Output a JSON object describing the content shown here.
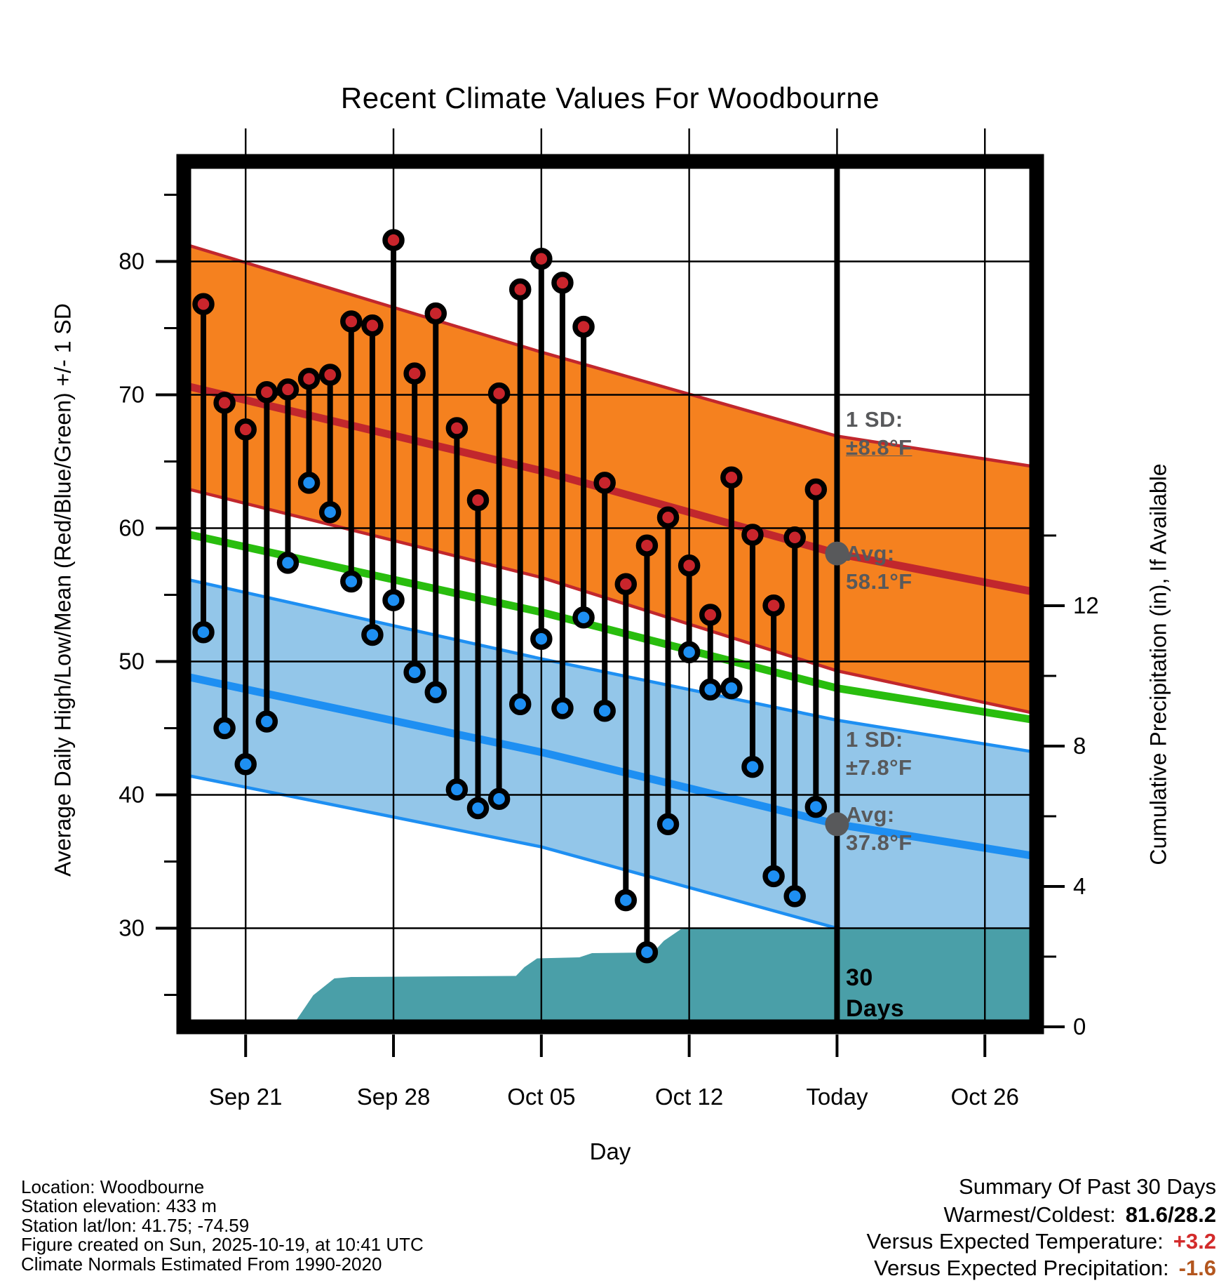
{
  "title": "Recent Climate Values For Woodbourne",
  "axes": {
    "x_label": "Day",
    "y_left_label": "Average Daily High/Low/Mean (Red/Blue/Green) +/- 1 SD",
    "y_right_label": "Cumulative Precipitation (in), If Available",
    "x_ticks": [
      {
        "d": 2,
        "label": "Sep 21"
      },
      {
        "d": 9,
        "label": "Sep 28"
      },
      {
        "d": 16,
        "label": "Oct 05"
      },
      {
        "d": 23,
        "label": "Oct 12"
      },
      {
        "d": 30,
        "label": "Today"
      },
      {
        "d": 37,
        "label": "Oct 26"
      }
    ],
    "y_left_ticks": [
      30,
      40,
      50,
      60,
      70,
      80
    ],
    "y_left_minor_ticks": [
      25,
      35,
      45,
      55,
      65,
      75,
      85
    ],
    "y_right_ticks": [
      0,
      4,
      8,
      12
    ],
    "y_right_minor_ticks": [
      2,
      6,
      10,
      14
    ]
  },
  "chart_data": {
    "type": "combo (stem highs/lows + climatology bands + cumulative precip area)",
    "title": "Recent Climate Values For Woodbourne",
    "xlabel": "Day",
    "ylabel_left": "Average Daily High/Low/Mean (Red/Blue/Green) +/- 1 SD",
    "ylabel_right": "Cumulative Precipitation (in), If Available",
    "x_unit": "days since Sep 19",
    "temp_axis_visible_range_f": [
      22.6,
      87.5
    ],
    "precip_axis_ticks_in": [
      0,
      4,
      8,
      12
    ],
    "dates": [
      "Sep 19",
      "Sep 20",
      "Sep 21",
      "Sep 22",
      "Sep 23",
      "Sep 24",
      "Sep 25",
      "Sep 26",
      "Sep 27",
      "Sep 28",
      "Sep 29",
      "Sep 30",
      "Oct 01",
      "Oct 02",
      "Oct 03",
      "Oct 04",
      "Oct 05",
      "Oct 06",
      "Oct 07",
      "Oct 08",
      "Oct 09",
      "Oct 10",
      "Oct 11",
      "Oct 12",
      "Oct 13",
      "Oct 14",
      "Oct 15",
      "Oct 16",
      "Oct 17",
      "Oct 18"
    ],
    "daily_high_f": [
      76.8,
      69.4,
      67.4,
      70.2,
      70.4,
      71.2,
      71.5,
      75.5,
      75.2,
      81.6,
      71.6,
      76.1,
      67.5,
      62.1,
      70.1,
      77.9,
      80.2,
      78.4,
      75.1,
      63.4,
      55.8,
      58.7,
      60.8,
      57.2,
      53.5,
      63.8,
      59.5,
      54.2,
      59.3,
      62.9
    ],
    "daily_low_f": [
      52.2,
      45.0,
      42.3,
      45.5,
      57.4,
      63.4,
      61.2,
      56.0,
      52.0,
      54.6,
      49.2,
      47.7,
      40.4,
      39.0,
      39.7,
      46.8,
      51.7,
      46.5,
      53.3,
      46.3,
      32.1,
      28.2,
      37.8,
      50.7,
      47.9,
      48.0,
      42.1,
      33.9,
      32.4,
      39.1
    ],
    "normals_polylines_d_vs_f": {
      "high_plus_sd": [
        [
          -0.9,
          81.3
        ],
        [
          16,
          73.2
        ],
        [
          30,
          66.9
        ],
        [
          39.4,
          64.6
        ]
      ],
      "high_avg": [
        [
          -0.9,
          70.7
        ],
        [
          16,
          64.3
        ],
        [
          30,
          58.1
        ],
        [
          39.4,
          55.2
        ]
      ],
      "high_minus_sd": [
        [
          -0.9,
          63.0
        ],
        [
          16,
          56.3
        ],
        [
          30,
          49.3
        ],
        [
          39.4,
          46.1
        ]
      ],
      "mean": [
        [
          -0.9,
          59.6
        ],
        [
          16,
          53.7
        ],
        [
          30,
          48.0
        ],
        [
          39.4,
          45.6
        ]
      ],
      "low_plus_sd": [
        [
          -0.9,
          56.2
        ],
        [
          16,
          50.2
        ],
        [
          30,
          45.6
        ],
        [
          39.4,
          43.2
        ]
      ],
      "low_avg": [
        [
          -0.9,
          48.9
        ],
        [
          16,
          43.2
        ],
        [
          30,
          37.8
        ],
        [
          39.4,
          35.4
        ]
      ],
      "low_minus_sd": [
        [
          -0.9,
          41.5
        ],
        [
          16,
          36.1
        ],
        [
          30,
          30.0
        ],
        [
          39.4,
          27.5
        ]
      ]
    },
    "cumulative_precip_in_d_vs_in": [
      [
        -0.9,
        0
      ],
      [
        3.9,
        0
      ],
      [
        4.3,
        0.1
      ],
      [
        5.2,
        0.9
      ],
      [
        6.2,
        1.38
      ],
      [
        7,
        1.42
      ],
      [
        14.8,
        1.45
      ],
      [
        15.2,
        1.7
      ],
      [
        15.8,
        1.95
      ],
      [
        17.8,
        1.98
      ],
      [
        18.4,
        2.1
      ],
      [
        21.3,
        2.12
      ],
      [
        21.8,
        2.45
      ],
      [
        22.6,
        2.78
      ],
      [
        23.5,
        2.82
      ],
      [
        39.4,
        2.82
      ]
    ],
    "today_d": 30,
    "legend_position": "none",
    "grid": "major only"
  },
  "annotations": {
    "high_sd_label": "1 SD:",
    "high_sd_value": "±8.8°F",
    "high_avg_label": "Avg:",
    "high_avg_value": "58.1°F",
    "high_avg_f": 58.1,
    "low_sd_label": "1 SD:",
    "low_sd_value": "±7.8°F",
    "low_avg_label": "Avg:",
    "low_avg_value": "37.8°F",
    "low_avg_f": 37.8,
    "window_line1": "30",
    "window_line2": "Days"
  },
  "footer": {
    "lines": [
      "Location: Woodbourne",
      "Station elevation: 433 m",
      "Station lat/lon: 41.75; -74.59",
      "Figure created on Sun, 2025-10-19, at 10:41 UTC",
      "Climate Normals Estimated From 1990-2020"
    ]
  },
  "summary": {
    "title": "Summary Of Past 30 Days",
    "rows": [
      {
        "label": "Warmest/Coldest:",
        "value": "81.6/28.2",
        "color": "#000000"
      },
      {
        "label": "Versus Expected Temperature:",
        "value": "+3.2",
        "color": "#D32B2B"
      },
      {
        "label": "Versus Expected Precipitation:",
        "value": "-1.6",
        "color": "#B3561E"
      }
    ]
  },
  "colors": {
    "orange_band_fill": "#F5811F",
    "red_line": "#C1272D",
    "red_dot": "#C9252C",
    "green_line": "#29BD0E",
    "blue_band_fill": "#93C6E9",
    "blue_line": "#1E8FF2",
    "blue_dot": "#1E8FF2",
    "teal_precip_fill": "#4A9FA8",
    "gray_annotation": "#58595B",
    "stem": "#000000"
  }
}
